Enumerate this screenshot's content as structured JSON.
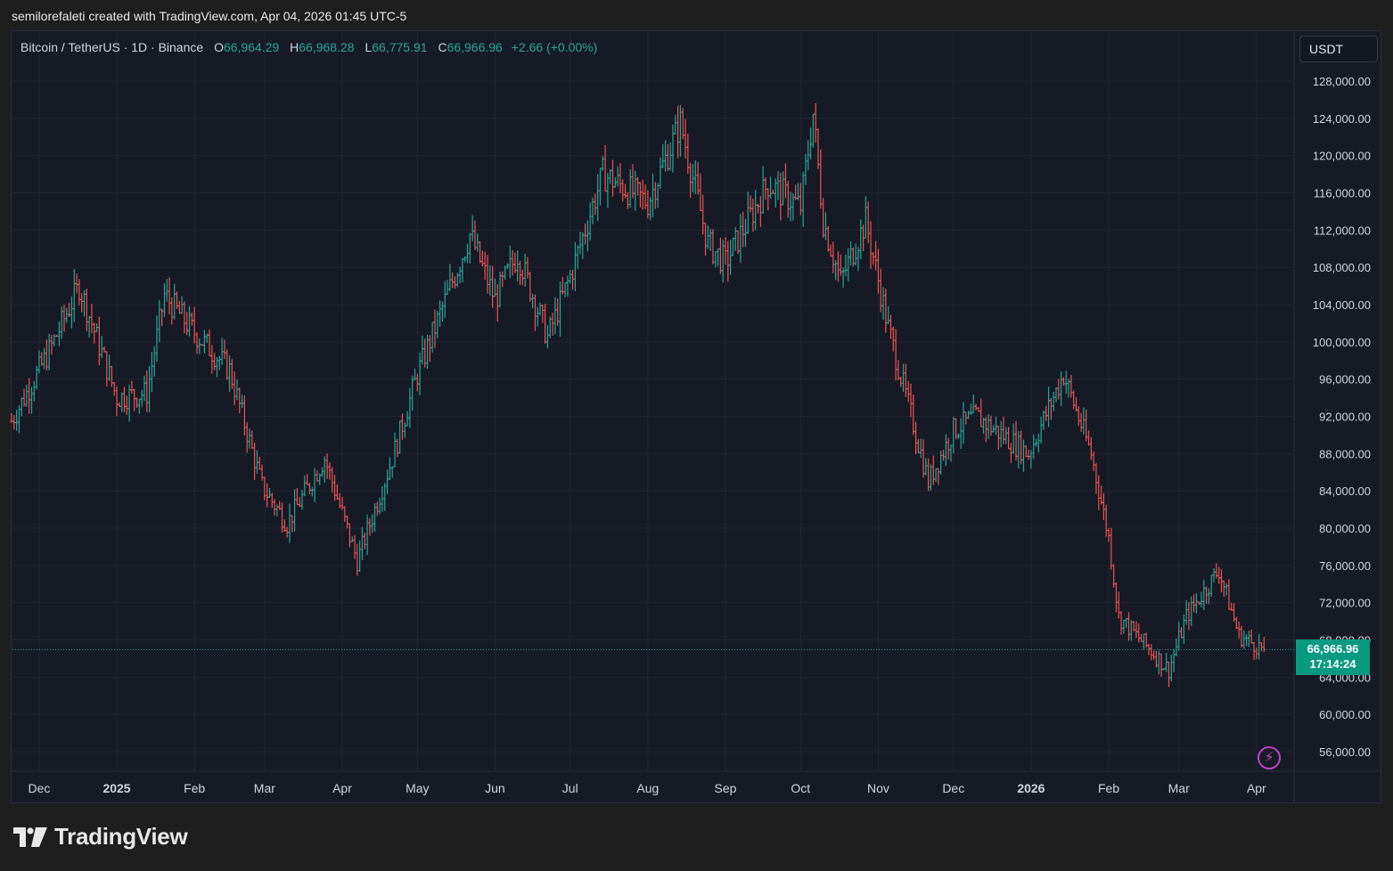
{
  "caption": "semilorefaleti created with TradingView.com, Apr 04, 2026 01:45 UTC-5",
  "legend": {
    "symbol": "Bitcoin / TetherUS · 1D · Binance",
    "open_label": "O",
    "open": "66,964.29",
    "high_label": "H",
    "high": "66,968.28",
    "low_label": "L",
    "low": "66,775.91",
    "close_label": "C",
    "close": "66,966.96",
    "change": "+2.66 (+0.00%)"
  },
  "currency": "USDT",
  "last_price": {
    "price": "66,966.96",
    "countdown": "17:14:24"
  },
  "brand": {
    "name": "TradingView",
    "logo_text": "TV"
  },
  "icons": {
    "alert": "lightning-icon",
    "logo": "tradingview-logo-icon"
  },
  "colors": {
    "up": "#26a69a",
    "down": "#ef5350",
    "background": "#161a25",
    "grid": "#232632",
    "alert": "#c040c8"
  },
  "chart_data": {
    "type": "line",
    "series": [
      {
        "name": "",
        "x": [
          "2024-11-20",
          "2024-12-05",
          "2024-12-17",
          "2025-01-01",
          "2025-01-13",
          "2025-01-20",
          "2025-02-01",
          "2025-02-15",
          "2025-02-28",
          "2025-03-10",
          "2025-03-25",
          "2025-04-07",
          "2025-04-21",
          "2025-05-01",
          "2025-05-22",
          "2025-06-01",
          "2025-06-10",
          "2025-06-22",
          "2025-07-01",
          "2025-07-14",
          "2025-08-01",
          "2025-08-14",
          "2025-08-25",
          "2025-09-01",
          "2025-09-18",
          "2025-10-01",
          "2025-10-06",
          "2025-10-10",
          "2025-10-17",
          "2025-10-27",
          "2025-11-05",
          "2025-11-21",
          "2025-12-01",
          "2025-12-10",
          "2025-12-31",
          "2026-01-14",
          "2026-01-25",
          "2026-02-01",
          "2026-02-05",
          "2026-02-12",
          "2026-02-25",
          "2026-03-04",
          "2026-03-17",
          "2026-03-25",
          "2026-04-04"
        ],
        "values": [
          91500,
          99000,
          106000,
          94000,
          94500,
          105000,
          101000,
          97000,
          84500,
          80500,
          87500,
          76500,
          87500,
          96500,
          111500,
          104500,
          109500,
          100500,
          107000,
          118000,
          115000,
          123500,
          110500,
          108500,
          117000,
          114500,
          124500,
          113000,
          106500,
          113000,
          101500,
          85000,
          90500,
          92000,
          88000,
          96500,
          88000,
          79000,
          70500,
          68500,
          64800,
          70500,
          75500,
          68500,
          66966
        ]
      }
    ],
    "candles_note": "",
    "x_ticks": [
      {
        "label": "Dec",
        "date": "2024-12-01",
        "bold": false
      },
      {
        "label": "2025",
        "date": "2025-01-01",
        "bold": true
      },
      {
        "label": "Feb",
        "date": "2025-02-01",
        "bold": false
      },
      {
        "label": "Mar",
        "date": "2025-03-01",
        "bold": false
      },
      {
        "label": "Apr",
        "date": "2025-04-01",
        "bold": false
      },
      {
        "label": "May",
        "date": "2025-05-01",
        "bold": false
      },
      {
        "label": "Jun",
        "date": "2025-06-01",
        "bold": false
      },
      {
        "label": "Jul",
        "date": "2025-07-01",
        "bold": false
      },
      {
        "label": "Aug",
        "date": "2025-08-01",
        "bold": false
      },
      {
        "label": "Sep",
        "date": "2025-09-01",
        "bold": false
      },
      {
        "label": "Oct",
        "date": "2025-10-01",
        "bold": false
      },
      {
        "label": "Nov",
        "date": "2025-11-01",
        "bold": false
      },
      {
        "label": "Dec",
        "date": "2025-12-01",
        "bold": false
      },
      {
        "label": "2026",
        "date": "2026-01-01",
        "bold": true
      },
      {
        "label": "Feb",
        "date": "2026-02-01",
        "bold": false
      },
      {
        "label": "Mar",
        "date": "2026-03-01",
        "bold": false
      },
      {
        "label": "Apr",
        "date": "2026-04-01",
        "bold": false
      }
    ],
    "y_ticks": [
      {
        "label": "56,000.00",
        "value": 56000
      },
      {
        "label": "60,000.00",
        "value": 60000
      },
      {
        "label": "64,000.00",
        "value": 64000
      },
      {
        "label": "68,000.00",
        "value": 68000
      },
      {
        "label": "72,000.00",
        "value": 72000
      },
      {
        "label": "76,000.00",
        "value": 76000
      },
      {
        "label": "80,000.00",
        "value": 80000
      },
      {
        "label": "84,000.00",
        "value": 84000
      },
      {
        "label": "88,000.00",
        "value": 88000
      },
      {
        "label": "92,000.00",
        "value": 92000
      },
      {
        "label": "96,000.00",
        "value": 96000
      },
      {
        "label": "100,000.00",
        "value": 100000
      },
      {
        "label": "104,000.00",
        "value": 104000
      },
      {
        "label": "108,000.00",
        "value": 108000
      },
      {
        "label": "112,000.00",
        "value": 112000
      },
      {
        "label": "116,000.00",
        "value": 116000
      },
      {
        "label": "120,000.00",
        "value": 120000
      },
      {
        "label": "124,000.00",
        "value": 124000
      },
      {
        "label": "128,000.00",
        "value": 128000
      }
    ],
    "ylim": [
      54000,
      130000
    ],
    "xlim": [
      "2024-11-20",
      "2026-04-16"
    ],
    "grid": true,
    "last_value": 66966.96
  }
}
